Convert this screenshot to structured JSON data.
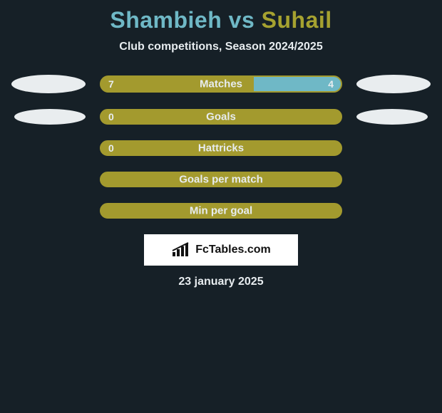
{
  "background_color": "#162027",
  "title": {
    "left": "Shambieh",
    "vs": "vs",
    "right": "Suhail",
    "left_color": "#6fb8c6",
    "right_color": "#a6a230"
  },
  "subtitle": {
    "text": "Club competitions, Season 2024/2025",
    "color": "#e7ecef"
  },
  "bar_colors": {
    "left_fill": "#a39a2e",
    "right_fill": "#6fb8c6",
    "border": "#a39a2e",
    "label_color": "#e7ecef",
    "value_color": "#e7ecef"
  },
  "ellipses": {
    "row1_left": {
      "w": 104,
      "h": 26,
      "color": "#e9edef"
    },
    "row1_right": {
      "w": 104,
      "h": 26,
      "color": "#e9edef"
    },
    "row2_left": {
      "w": 100,
      "h": 22,
      "color": "#e9edef"
    },
    "row2_right": {
      "w": 100,
      "h": 22,
      "color": "#e9edef"
    }
  },
  "stats": [
    {
      "label": "Matches",
      "left_value": "7",
      "right_value": "4",
      "left_pct": 63.6,
      "right_pct": 36.4,
      "show_ellipses": true,
      "ellipse_key": "row1"
    },
    {
      "label": "Goals",
      "left_value": "0",
      "right_value": "",
      "left_pct": 100,
      "right_pct": 0,
      "show_ellipses": true,
      "ellipse_key": "row2"
    },
    {
      "label": "Hattricks",
      "left_value": "0",
      "right_value": "",
      "left_pct": 100,
      "right_pct": 0,
      "show_ellipses": false
    },
    {
      "label": "Goals per match",
      "left_value": "",
      "right_value": "",
      "left_pct": 100,
      "right_pct": 0,
      "show_ellipses": false
    },
    {
      "label": "Min per goal",
      "left_value": "",
      "right_value": "",
      "left_pct": 100,
      "right_pct": 0,
      "show_ellipses": false
    }
  ],
  "logo": {
    "box_bg": "#ffffff",
    "text": "FcTables.com",
    "text_color": "#111111",
    "icon_color": "#111111"
  },
  "date": {
    "text": "23 january 2025",
    "color": "#e7ecef"
  }
}
